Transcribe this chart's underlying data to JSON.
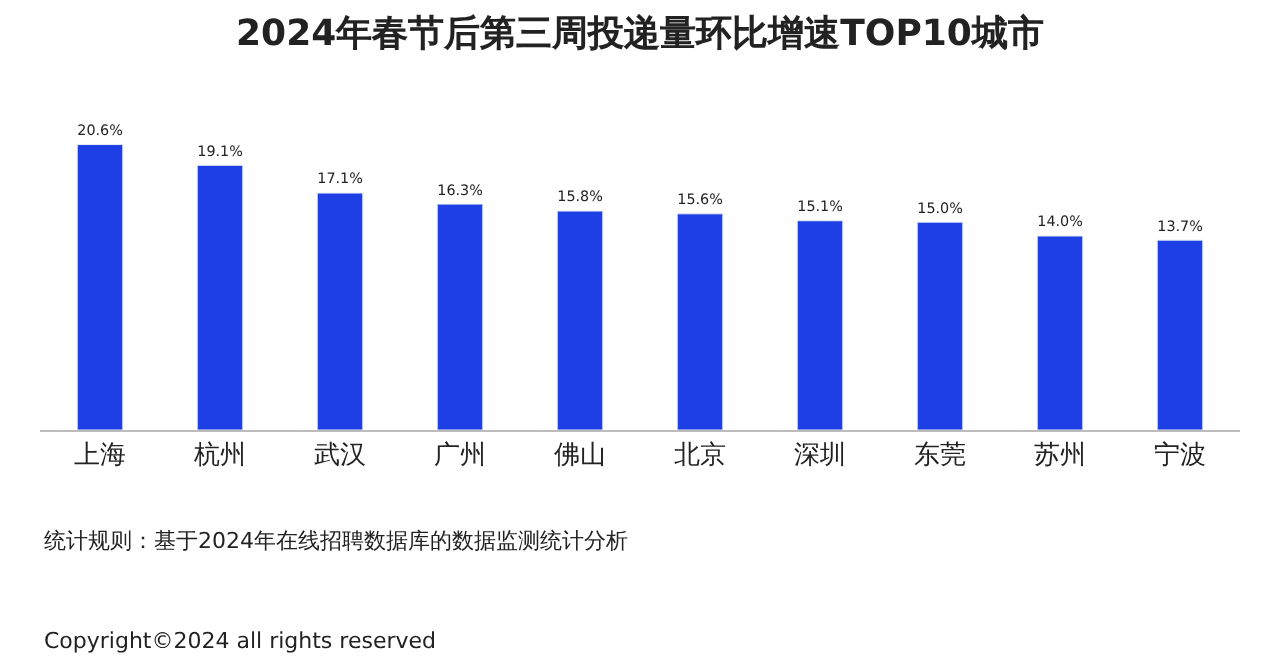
{
  "chart_data": {
    "type": "bar",
    "title": "2024年春节后第三周投递量环比增速TOP10城市",
    "categories": [
      "上海",
      "杭州",
      "武汉",
      "广州",
      "佛山",
      "北京",
      "深圳",
      "东莞",
      "苏州",
      "宁波"
    ],
    "values": [
      20.6,
      19.1,
      17.1,
      16.3,
      15.8,
      15.6,
      15.1,
      15.0,
      14.0,
      13.7
    ],
    "value_labels": [
      "20.6%",
      "19.1%",
      "17.1%",
      "16.3%",
      "15.8%",
      "15.6%",
      "15.1%",
      "15.0%",
      "14.0%",
      "13.7%"
    ],
    "color": "#1f3fe6",
    "legend": false,
    "annotations": [
      "统计规则：基于2024年在线招聘数据库的数据监测统计分析",
      "Copyright©2024 all rights reserved"
    ]
  }
}
